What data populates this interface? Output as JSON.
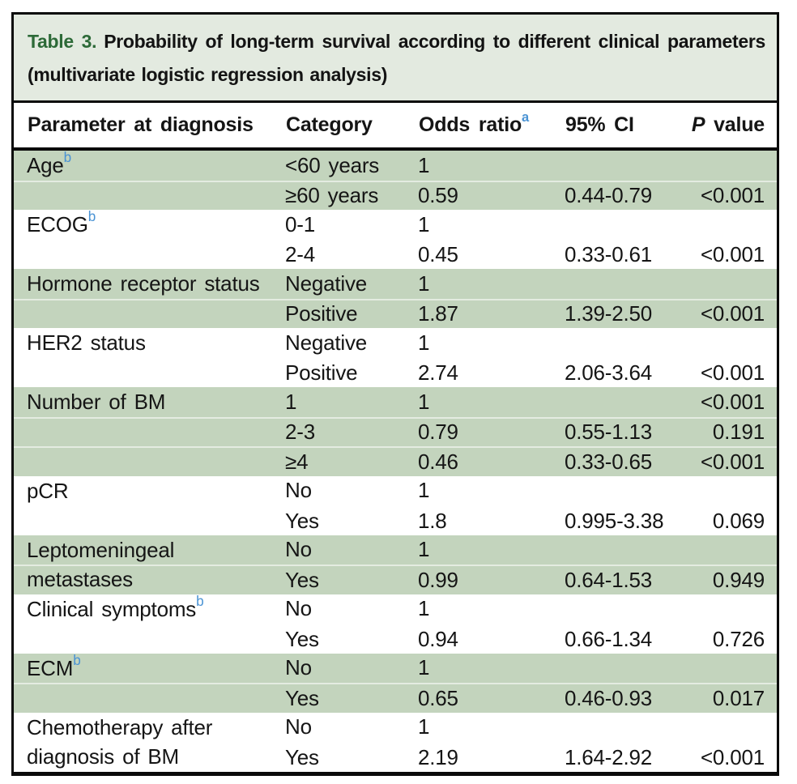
{
  "title": {
    "label": "Table 3.",
    "text": "Probability of long-term survival according to different clinical parameters (multivariate logistic regression analysis)"
  },
  "columns": {
    "parameter": "Parameter at diagnosis",
    "category": "Category",
    "odds_ratio": "Odds ratio",
    "odds_ratio_sup": "a",
    "ci": "95% CI",
    "p_italic": "P",
    "p_rest": "value"
  },
  "groups": [
    {
      "parameter": "Age",
      "sup": "b",
      "shaded": true,
      "rows": [
        {
          "category": "<60 years",
          "odds": "1",
          "ci": "",
          "p": ""
        },
        {
          "category": "≥60 years",
          "odds": "0.59",
          "ci": "0.44-0.79",
          "p": "<0.001"
        }
      ]
    },
    {
      "parameter": "ECOG",
      "sup": "b",
      "shaded": false,
      "rows": [
        {
          "category": "0-1",
          "odds": "1",
          "ci": "",
          "p": ""
        },
        {
          "category": "2-4",
          "odds": "0.45",
          "ci": "0.33-0.61",
          "p": "<0.001"
        }
      ]
    },
    {
      "parameter": "Hormone receptor status",
      "sup": "",
      "shaded": true,
      "rows": [
        {
          "category": "Negative",
          "odds": "1",
          "ci": "",
          "p": ""
        },
        {
          "category": "Positive",
          "odds": "1.87",
          "ci": "1.39-2.50",
          "p": "<0.001"
        }
      ]
    },
    {
      "parameter": "HER2 status",
      "sup": "",
      "shaded": false,
      "rows": [
        {
          "category": "Negative",
          "odds": "1",
          "ci": "",
          "p": ""
        },
        {
          "category": "Positive",
          "odds": "2.74",
          "ci": "2.06-3.64",
          "p": "<0.001"
        }
      ]
    },
    {
      "parameter": "Number of BM",
      "sup": "",
      "shaded": true,
      "rows": [
        {
          "category": "1",
          "odds": "1",
          "ci": "",
          "p": "<0.001"
        },
        {
          "category": "2-3",
          "odds": "0.79",
          "ci": "0.55-1.13",
          "p": "0.191"
        },
        {
          "category": "≥4",
          "odds": "0.46",
          "ci": "0.33-0.65",
          "p": "<0.001"
        }
      ]
    },
    {
      "parameter": "pCR",
      "sup": "",
      "shaded": false,
      "rows": [
        {
          "category": "No",
          "odds": "1",
          "ci": "",
          "p": ""
        },
        {
          "category": "Yes",
          "odds": "1.8",
          "ci": "0.995-3.38",
          "p": "0.069"
        }
      ]
    },
    {
      "parameter": "Leptomeningeal metastases",
      "sup": "",
      "shaded": true,
      "rows": [
        {
          "category": "No",
          "odds": "1",
          "ci": "",
          "p": ""
        },
        {
          "category": "Yes",
          "odds": "0.99",
          "ci": "0.64-1.53",
          "p": "0.949"
        }
      ]
    },
    {
      "parameter": "Clinical symptoms",
      "sup": "b",
      "shaded": false,
      "rows": [
        {
          "category": "No",
          "odds": "1",
          "ci": "",
          "p": ""
        },
        {
          "category": "Yes",
          "odds": "0.94",
          "ci": "0.66-1.34",
          "p": "0.726"
        }
      ]
    },
    {
      "parameter": "ECM",
      "sup": "b",
      "shaded": true,
      "rows": [
        {
          "category": "No",
          "odds": "1",
          "ci": "",
          "p": ""
        },
        {
          "category": "Yes",
          "odds": "0.65",
          "ci": "0.46-0.93",
          "p": "0.017"
        }
      ]
    },
    {
      "parameter": "Chemotherapy after diagnosis of BM",
      "sup": "",
      "shaded": false,
      "rows": [
        {
          "category": "No",
          "odds": "1",
          "ci": "",
          "p": ""
        },
        {
          "category": "Yes",
          "odds": "2.19",
          "ci": "1.64-2.92",
          "p": "<0.001"
        }
      ]
    }
  ],
  "colors": {
    "band_green": "#c3d4bd",
    "title_bg": "#e3eae0",
    "title_accent_green": "#2d6a38",
    "superscript_blue": "#4a93d4",
    "text": "#151515",
    "border": "#0a0a0a"
  }
}
